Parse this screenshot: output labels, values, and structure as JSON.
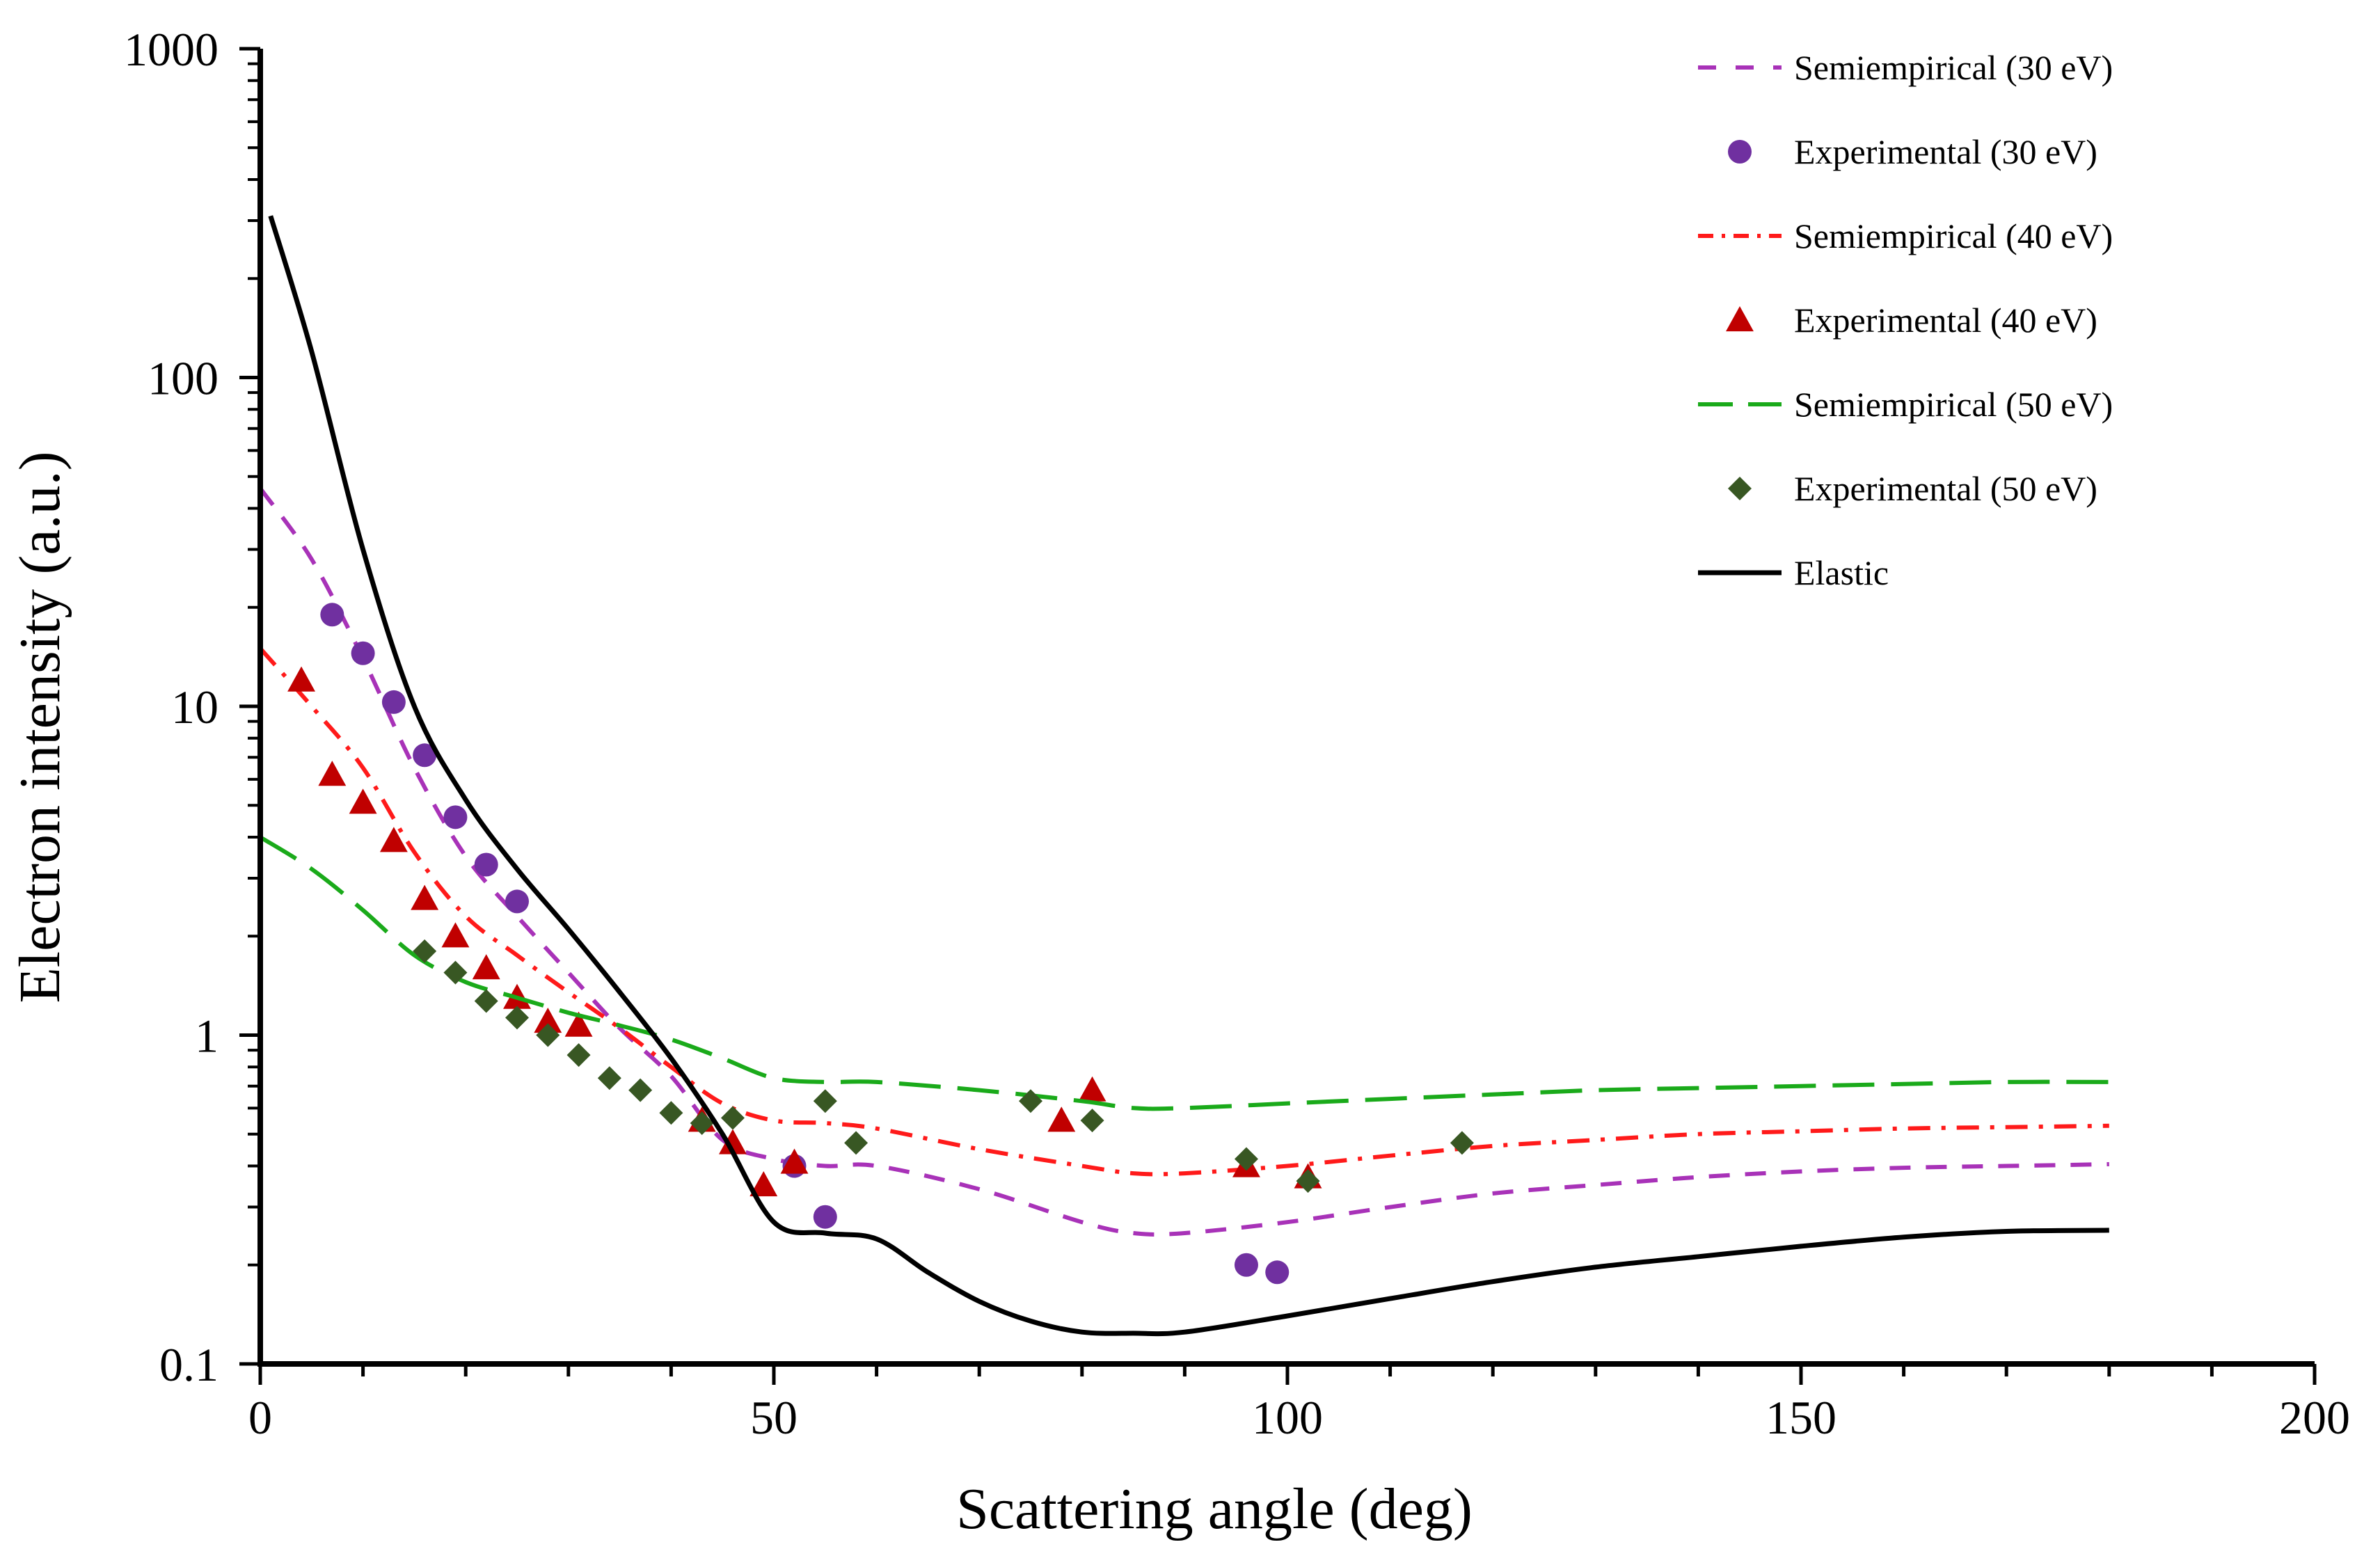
{
  "chart_data": {
    "type": "scatter",
    "title": "",
    "xlabel": "Scattering angle (deg)",
    "ylabel": "Electron intensity (a.u.)",
    "xlim": [
      0,
      200
    ],
    "ylim": [
      0.1,
      1000
    ],
    "yscale": "log",
    "grid": false,
    "legend_position": "top-right",
    "x_ticks": [
      0,
      50,
      100,
      150,
      200
    ],
    "x_tick_labels": [
      "0",
      "50",
      "100",
      "150",
      "200"
    ],
    "y_ticks": [
      0.1,
      1,
      10,
      100,
      1000
    ],
    "y_tick_labels": [
      "0.1",
      "1",
      "10",
      "100",
      "1000"
    ],
    "series": [
      {
        "name": "Semiempirical (30 eV)",
        "kind": "line",
        "dash": "dashed",
        "color": "#a832b8",
        "x": [
          0,
          5,
          10,
          15,
          20,
          25,
          30,
          35,
          40,
          45,
          50,
          55,
          60,
          70,
          80,
          85,
          90,
          100,
          110,
          120,
          130,
          140,
          150,
          160,
          170,
          180
        ],
        "y": [
          46,
          28,
          14,
          6.5,
          3.5,
          2.3,
          1.55,
          1.05,
          0.75,
          0.48,
          0.42,
          0.4,
          0.4,
          0.34,
          0.27,
          0.25,
          0.25,
          0.27,
          0.3,
          0.33,
          0.35,
          0.37,
          0.385,
          0.395,
          0.4,
          0.405
        ]
      },
      {
        "name": "Experimental (30 eV)",
        "kind": "scatter",
        "marker": "circle",
        "color": "#7030a0",
        "x": [
          7,
          10,
          13,
          16,
          19,
          22,
          25,
          52,
          55,
          96,
          99
        ],
        "y": [
          19,
          14.5,
          10.3,
          7.1,
          4.6,
          3.3,
          2.55,
          0.4,
          0.28,
          0.2,
          0.19
        ]
      },
      {
        "name": "Semiempirical (40 eV)",
        "kind": "line",
        "dash": "dash-dot",
        "color": "#ff1a1a",
        "x": [
          0,
          5,
          10,
          15,
          20,
          25,
          30,
          35,
          40,
          45,
          50,
          55,
          60,
          70,
          80,
          85,
          90,
          100,
          110,
          120,
          130,
          140,
          150,
          160,
          170,
          180
        ],
        "y": [
          15,
          10,
          6.5,
          3.6,
          2.3,
          1.75,
          1.35,
          1.05,
          0.8,
          0.62,
          0.55,
          0.54,
          0.52,
          0.45,
          0.4,
          0.38,
          0.38,
          0.4,
          0.43,
          0.46,
          0.48,
          0.5,
          0.51,
          0.52,
          0.525,
          0.53
        ]
      },
      {
        "name": "Experimental (40 eV)",
        "kind": "scatter",
        "marker": "triangle",
        "color": "#c00000",
        "x": [
          4,
          7,
          10,
          13,
          16,
          19,
          22,
          25,
          28,
          31,
          43,
          46,
          49,
          52,
          78,
          81,
          96,
          102
        ],
        "y": [
          12,
          6.2,
          5.1,
          3.9,
          2.6,
          2.0,
          1.6,
          1.3,
          1.1,
          1.07,
          0.55,
          0.47,
          0.35,
          0.41,
          0.55,
          0.68,
          0.4,
          0.37
        ]
      },
      {
        "name": "Semiempirical (50 eV)",
        "kind": "line",
        "dash": "long-dash",
        "color": "#1aaa1a",
        "x": [
          0,
          5,
          10,
          15,
          20,
          25,
          30,
          35,
          40,
          45,
          50,
          55,
          60,
          70,
          80,
          85,
          90,
          100,
          110,
          120,
          130,
          140,
          150,
          160,
          170,
          180
        ],
        "y": [
          4,
          3.2,
          2.4,
          1.75,
          1.45,
          1.3,
          1.17,
          1.07,
          0.97,
          0.85,
          0.74,
          0.72,
          0.72,
          0.68,
          0.63,
          0.6,
          0.6,
          0.62,
          0.64,
          0.66,
          0.68,
          0.69,
          0.7,
          0.71,
          0.72,
          0.72
        ]
      },
      {
        "name": "Experimental (50 eV)",
        "kind": "scatter",
        "marker": "diamond",
        "color": "#385723",
        "x": [
          16,
          19,
          22,
          25,
          28,
          31,
          34,
          37,
          40,
          43,
          46,
          55,
          58,
          75,
          81,
          96,
          102,
          117
        ],
        "y": [
          1.8,
          1.55,
          1.27,
          1.13,
          1.0,
          0.87,
          0.74,
          0.68,
          0.58,
          0.54,
          0.56,
          0.63,
          0.47,
          0.63,
          0.55,
          0.42,
          0.36,
          0.47
        ]
      },
      {
        "name": "Elastic",
        "kind": "line",
        "dash": "solid",
        "color": "#000000",
        "x": [
          1,
          5,
          10,
          15,
          20,
          25,
          30,
          35,
          40,
          45,
          50,
          55,
          60,
          65,
          70,
          75,
          80,
          85,
          90,
          100,
          110,
          120,
          130,
          140,
          150,
          160,
          170,
          180
        ],
        "y": [
          310,
          120,
          30,
          10,
          5.2,
          3.2,
          2.1,
          1.35,
          0.85,
          0.5,
          0.27,
          0.25,
          0.24,
          0.19,
          0.155,
          0.135,
          0.125,
          0.124,
          0.125,
          0.14,
          0.158,
          0.178,
          0.197,
          0.212,
          0.228,
          0.243,
          0.253,
          0.255
        ]
      }
    ]
  }
}
